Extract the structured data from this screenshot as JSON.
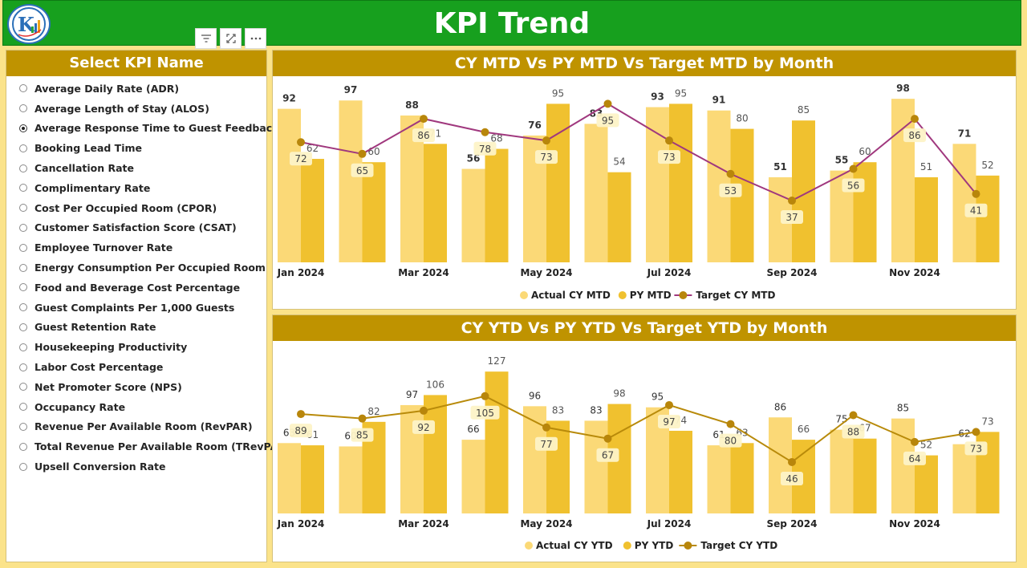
{
  "header": {
    "title": "KPI Trend",
    "logo_icon": "company-logo-icon"
  },
  "toolbar": {
    "icons": [
      "filter-icon",
      "focus-mode-icon",
      "more-options-icon"
    ]
  },
  "slicer": {
    "title": "Select KPI Name",
    "items": [
      {
        "label": "Average Daily Rate (ADR)",
        "selected": false
      },
      {
        "label": "Average Length of Stay (ALOS)",
        "selected": false
      },
      {
        "label": "Average Response Time to Guest Feedback",
        "selected": true
      },
      {
        "label": "Booking Lead Time",
        "selected": false
      },
      {
        "label": "Cancellation Rate",
        "selected": false
      },
      {
        "label": "Complimentary Rate",
        "selected": false
      },
      {
        "label": "Cost Per Occupied Room (CPOR)",
        "selected": false
      },
      {
        "label": "Customer Satisfaction Score (CSAT)",
        "selected": false
      },
      {
        "label": "Employee Turnover Rate",
        "selected": false
      },
      {
        "label": "Energy Consumption Per Occupied Room",
        "selected": false
      },
      {
        "label": "Food and Beverage Cost Percentage",
        "selected": false
      },
      {
        "label": "Guest Complaints Per 1,000 Guests",
        "selected": false
      },
      {
        "label": "Guest Retention Rate",
        "selected": false
      },
      {
        "label": "Housekeeping Productivity",
        "selected": false
      },
      {
        "label": "Labor Cost Percentage",
        "selected": false
      },
      {
        "label": "Net Promoter Score (NPS)",
        "selected": false
      },
      {
        "label": "Occupancy Rate",
        "selected": false
      },
      {
        "label": "Revenue Per Available Room (RevPAR)",
        "selected": false
      },
      {
        "label": "Total Revenue Per Available Room (TRevPAR)",
        "selected": false
      },
      {
        "label": "Upsell Conversion Rate",
        "selected": false
      }
    ]
  },
  "colors": {
    "header_green": "#17a01e",
    "panel_gold": "#bf9300",
    "actual": "#fbd977",
    "py": "#f0c12f",
    "target_mtd_line": "#a0387e",
    "target_ytd_line": "#b88a0a",
    "target_marker": "#b8860b"
  },
  "chart_data": [
    {
      "type": "bar",
      "title": "CY MTD Vs PY MTD Vs Target MTD by Month",
      "categories": [
        "Jan 2024",
        "Feb 2024",
        "Mar 2024",
        "Apr 2024",
        "May 2024",
        "Jun 2024",
        "Jul 2024",
        "Aug 2024",
        "Sep 2024",
        "Oct 2024",
        "Nov 2024",
        "Dec 2024"
      ],
      "tick_labels": [
        "Jan 2024",
        "",
        "Mar 2024",
        "",
        "May 2024",
        "",
        "Jul 2024",
        "",
        "Sep 2024",
        "",
        "Nov 2024",
        ""
      ],
      "series": [
        {
          "name": "Actual CY MTD",
          "kind": "bar",
          "values": [
            92,
            97,
            88,
            56,
            76,
            83,
            93,
            91,
            51,
            55,
            98,
            71
          ]
        },
        {
          "name": "PY MTD",
          "kind": "bar",
          "values": [
            62,
            60,
            71,
            68,
            95,
            54,
            95,
            80,
            85,
            60,
            51,
            52
          ]
        },
        {
          "name": "Target CY MTD",
          "kind": "line",
          "values": [
            72,
            65,
            86,
            78,
            73,
            95,
            73,
            53,
            37,
            56,
            86,
            41
          ]
        }
      ],
      "ylim": [
        0,
        100
      ],
      "legend": "bottom-center"
    },
    {
      "type": "bar",
      "title": "CY YTD Vs PY YTD Vs Target YTD by Month",
      "categories": [
        "Jan 2024",
        "Feb 2024",
        "Mar 2024",
        "Apr 2024",
        "May 2024",
        "Jun 2024",
        "Jul 2024",
        "Aug 2024",
        "Sep 2024",
        "Oct 2024",
        "Nov 2024",
        "Dec 2024"
      ],
      "tick_labels": [
        "Jan 2024",
        "",
        "Mar 2024",
        "",
        "May 2024",
        "",
        "Jul 2024",
        "",
        "Sep 2024",
        "",
        "Nov 2024",
        ""
      ],
      "series": [
        {
          "name": "Actual CY YTD",
          "kind": "bar",
          "values": [
            63,
            60,
            97,
            66,
            96,
            83,
            95,
            61,
            86,
            75,
            85,
            62
          ]
        },
        {
          "name": "PY YTD",
          "kind": "bar",
          "values": [
            61,
            82,
            106,
            127,
            83,
            98,
            74,
            63,
            66,
            67,
            52,
            73
          ]
        },
        {
          "name": "Target CY YTD",
          "kind": "line",
          "values": [
            89,
            85,
            92,
            105,
            77,
            67,
            97,
            80,
            46,
            88,
            64,
            73
          ]
        }
      ],
      "ylim": [
        0,
        130
      ],
      "legend": "bottom-center"
    }
  ]
}
